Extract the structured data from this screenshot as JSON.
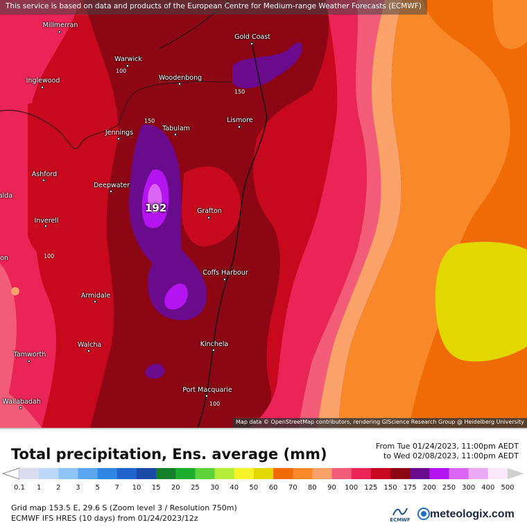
{
  "banner": {
    "text": "This service is based on data and products of the European Centre for Medium-range Weather Forecasts (ECMWF)"
  },
  "attribution": "Map data © OpenStreetMap contributors, rendering GIScience Research Group @ Heidelberg University",
  "places": [
    {
      "id": "millmerran",
      "name": "Millmerran"
    },
    {
      "id": "gold-coast",
      "name": "Gold Coast"
    },
    {
      "id": "warwick",
      "name": "Warwick"
    },
    {
      "id": "inglewood",
      "name": "Inglewood"
    },
    {
      "id": "woodenbong",
      "name": "Woodenbong"
    },
    {
      "id": "lismore",
      "name": "Lismore"
    },
    {
      "id": "jennings",
      "name": "Jennings"
    },
    {
      "id": "tabulam",
      "name": "Tabulam"
    },
    {
      "id": "ashford",
      "name": "Ashford"
    },
    {
      "id": "deepwater",
      "name": "Deepwater"
    },
    {
      "id": "alda",
      "name": "alda"
    },
    {
      "id": "grafton",
      "name": "Grafton"
    },
    {
      "id": "inverell",
      "name": "Inverell"
    },
    {
      "id": "on",
      "name": "on"
    },
    {
      "id": "coffs-harbour",
      "name": "Coffs Harbour"
    },
    {
      "id": "armidale",
      "name": "Armidale"
    },
    {
      "id": "walcha",
      "name": "Walcha"
    },
    {
      "id": "kinchela",
      "name": "Kinchela"
    },
    {
      "id": "tamworth",
      "name": "Tamworth"
    },
    {
      "id": "port-macquarie",
      "name": "Port Macquarie"
    },
    {
      "id": "wallabadah",
      "name": "Wallabadah"
    }
  ],
  "contour_labels": [
    "100",
    "150",
    "150",
    "100",
    "100"
  ],
  "max_value": "192",
  "legend": {
    "title": "Total precipitation, Ens. average (mm)",
    "period_from": "From Tue 01/24/2023, 11:00pm AEDT",
    "period_to": "to Wed 02/08/2023, 11:00pm AEDT",
    "scale": [
      {
        "label": "0.1",
        "color": "#dcdcf0"
      },
      {
        "label": "1",
        "color": "#bcd8f8"
      },
      {
        "label": "2",
        "color": "#8ec4f6"
      },
      {
        "label": "3",
        "color": "#5aa6f0"
      },
      {
        "label": "5",
        "color": "#2f86e4"
      },
      {
        "label": "7",
        "color": "#1e64cc"
      },
      {
        "label": "10",
        "color": "#1a4aa6"
      },
      {
        "label": "15",
        "color": "#14802a"
      },
      {
        "label": "20",
        "color": "#1eae2e"
      },
      {
        "label": "25",
        "color": "#5ed23a"
      },
      {
        "label": "30",
        "color": "#b4ec3a"
      },
      {
        "label": "40",
        "color": "#f4f428"
      },
      {
        "label": "50",
        "color": "#e2d800"
      },
      {
        "label": "60",
        "color": "#f06a06"
      },
      {
        "label": "70",
        "color": "#f88828"
      },
      {
        "label": "80",
        "color": "#faa26a"
      },
      {
        "label": "90",
        "color": "#f25c78"
      },
      {
        "label": "100",
        "color": "#ea2456"
      },
      {
        "label": "125",
        "color": "#c8081e"
      },
      {
        "label": "150",
        "color": "#8c0614"
      },
      {
        "label": "175",
        "color": "#6a0a8c"
      },
      {
        "label": "200",
        "color": "#b414f0"
      },
      {
        "label": "250",
        "color": "#dc64f4"
      },
      {
        "label": "300",
        "color": "#eaaaf6"
      },
      {
        "label": "400",
        "color": "#f8e8fa"
      },
      {
        "label": "500",
        "color": "#d0d0d0"
      }
    ]
  },
  "info": {
    "line1": "Grid map 153.5 E, 29.6 S (Zoom level 3 / Resolution 750m)",
    "line2": "ECMWF IFS HRES (10 days) from 01/24/2023/12z"
  },
  "logos": {
    "ecmwf": "ECMWF",
    "meteologix": "meteologix.com"
  }
}
